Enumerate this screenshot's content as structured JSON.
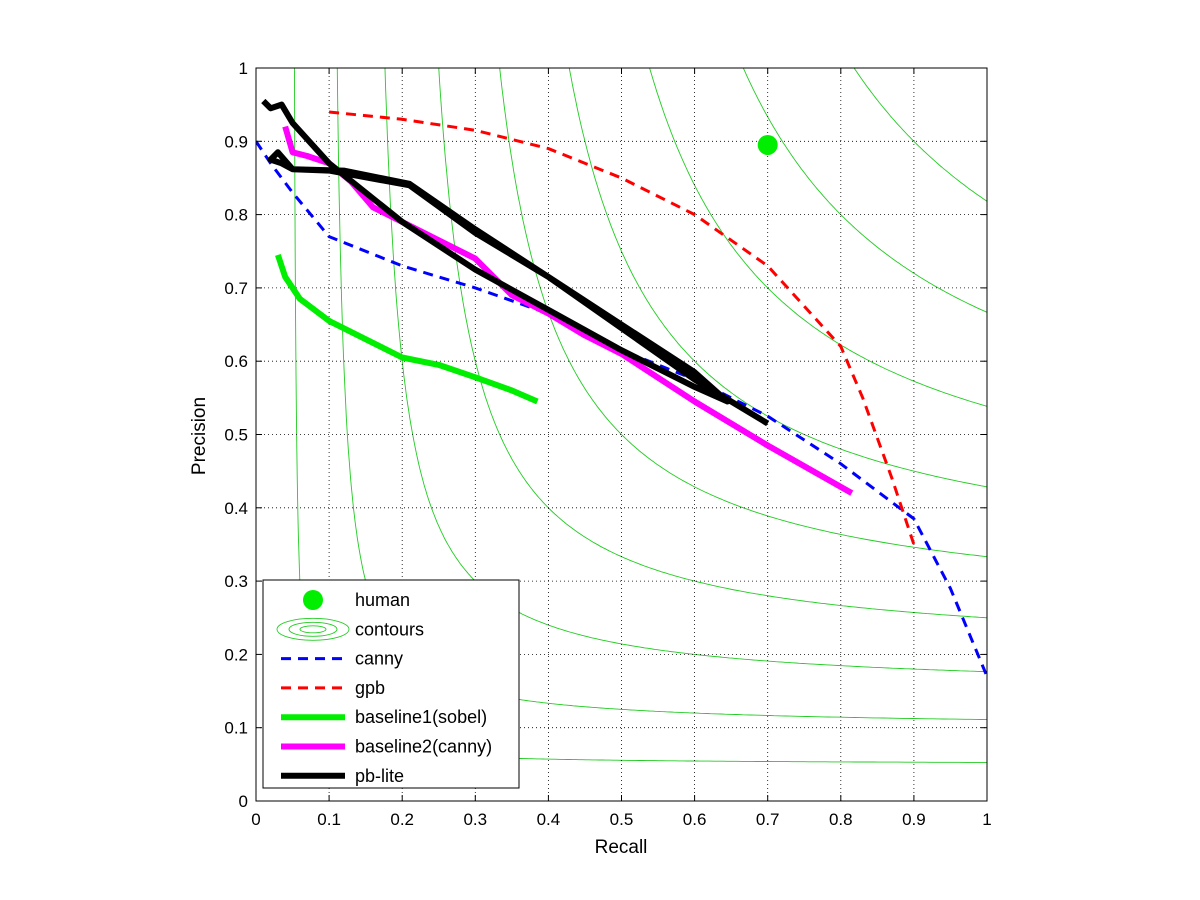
{
  "chart_data": {
    "type": "line",
    "xlabel": "Recall",
    "ylabel": "Precision",
    "xlim": [
      0,
      1
    ],
    "ylim": [
      0,
      1
    ],
    "xticks": [
      "0",
      "0.1",
      "0.2",
      "0.3",
      "0.4",
      "0.5",
      "0.6",
      "0.7",
      "0.8",
      "0.9",
      "1"
    ],
    "yticks": [
      "0",
      "0.1",
      "0.2",
      "0.3",
      "0.4",
      "0.5",
      "0.6",
      "0.7",
      "0.8",
      "0.9",
      "1"
    ],
    "grid": true,
    "legend_position": "bottom-left",
    "contour_f_levels": [
      0.1,
      0.2,
      0.3,
      0.4,
      0.5,
      0.6,
      0.7,
      0.8,
      0.9
    ],
    "series": [
      {
        "name": "human",
        "style": "marker",
        "color": "#00ee00",
        "points": [
          [
            0.7,
            0.895
          ]
        ]
      },
      {
        "name": "contours",
        "style": "contours",
        "color": "#22cc22",
        "points": []
      },
      {
        "name": "canny",
        "style": "dashed",
        "color": "#0000ff",
        "points": [
          [
            0.0,
            0.9
          ],
          [
            0.02,
            0.87
          ],
          [
            0.05,
            0.83
          ],
          [
            0.1,
            0.77
          ],
          [
            0.2,
            0.73
          ],
          [
            0.3,
            0.7
          ],
          [
            0.4,
            0.665
          ],
          [
            0.5,
            0.615
          ],
          [
            0.6,
            0.575
          ],
          [
            0.7,
            0.525
          ],
          [
            0.8,
            0.46
          ],
          [
            0.88,
            0.4
          ],
          [
            0.9,
            0.385
          ],
          [
            0.95,
            0.29
          ],
          [
            1.0,
            0.17
          ]
        ]
      },
      {
        "name": "gpb",
        "style": "dashed",
        "color": "#ff0000",
        "points": [
          [
            0.1,
            0.94
          ],
          [
            0.2,
            0.93
          ],
          [
            0.3,
            0.915
          ],
          [
            0.4,
            0.89
          ],
          [
            0.5,
            0.85
          ],
          [
            0.6,
            0.8
          ],
          [
            0.7,
            0.73
          ],
          [
            0.8,
            0.62
          ],
          [
            0.83,
            0.55
          ],
          [
            0.87,
            0.44
          ],
          [
            0.9,
            0.35
          ]
        ]
      },
      {
        "name": "baseline1(sobel)",
        "style": "solid-thick",
        "color": "#00ee00",
        "points": [
          [
            0.03,
            0.745
          ],
          [
            0.04,
            0.715
          ],
          [
            0.06,
            0.685
          ],
          [
            0.1,
            0.655
          ],
          [
            0.15,
            0.63
          ],
          [
            0.2,
            0.605
          ],
          [
            0.25,
            0.595
          ],
          [
            0.3,
            0.578
          ],
          [
            0.35,
            0.56
          ],
          [
            0.385,
            0.545
          ]
        ]
      },
      {
        "name": "baseline2(canny)",
        "style": "solid-thick",
        "color": "#ff00ff",
        "points": [
          [
            0.04,
            0.92
          ],
          [
            0.05,
            0.885
          ],
          [
            0.07,
            0.88
          ],
          [
            0.1,
            0.87
          ],
          [
            0.13,
            0.845
          ],
          [
            0.16,
            0.81
          ],
          [
            0.2,
            0.79
          ],
          [
            0.25,
            0.765
          ],
          [
            0.3,
            0.74
          ],
          [
            0.35,
            0.69
          ],
          [
            0.4,
            0.665
          ],
          [
            0.45,
            0.635
          ],
          [
            0.5,
            0.61
          ],
          [
            0.6,
            0.545
          ],
          [
            0.7,
            0.485
          ],
          [
            0.815,
            0.42
          ]
        ]
      },
      {
        "name": "pb-lite",
        "style": "solid-thick",
        "color": "#000000",
        "points": [
          [
            0.01,
            0.955
          ],
          [
            0.02,
            0.945
          ],
          [
            0.035,
            0.95
          ],
          [
            0.05,
            0.925
          ],
          [
            0.1,
            0.87
          ],
          [
            0.2,
            0.79
          ],
          [
            0.3,
            0.725
          ],
          [
            0.4,
            0.67
          ],
          [
            0.5,
            0.615
          ],
          [
            0.6,
            0.565
          ],
          [
            0.645,
            0.545
          ],
          [
            0.6,
            0.585
          ],
          [
            0.5,
            0.65
          ],
          [
            0.4,
            0.715
          ],
          [
            0.3,
            0.775
          ],
          [
            0.21,
            0.84
          ],
          [
            0.1,
            0.86
          ],
          [
            0.05,
            0.862
          ],
          [
            0.03,
            0.885
          ],
          [
            0.02,
            0.875
          ],
          [
            0.035,
            0.87
          ],
          [
            0.05,
            0.862
          ],
          [
            0.12,
            0.86
          ],
          [
            0.21,
            0.842
          ],
          [
            0.3,
            0.78
          ],
          [
            0.4,
            0.715
          ],
          [
            0.5,
            0.645
          ],
          [
            0.6,
            0.575
          ],
          [
            0.7,
            0.515
          ]
        ]
      }
    ]
  }
}
